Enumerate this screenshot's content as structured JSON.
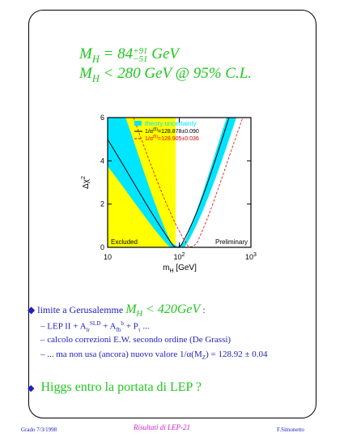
{
  "formula1": {
    "m": "M",
    "sub": "H",
    "eq": " = 84",
    "sup": "+91",
    "low": "−51",
    "unit": " GeV"
  },
  "formula2": {
    "m": "M",
    "sub": "H",
    "rest": " < 280 GeV @ 95% C.L."
  },
  "chart": {
    "ylabel": "Δχ",
    "ylabel_sup": "2",
    "xlabel": "m",
    "xlabel_sub": "H",
    "xlabel_rest": " [GeV]",
    "yticks": [
      0,
      2,
      4,
      6
    ],
    "xticks": [
      {
        "value": 10,
        "label": "10"
      },
      {
        "value": 100,
        "label": "10",
        "sup": "2"
      },
      {
        "value": 1000,
        "label": "10",
        "sup": "3"
      }
    ],
    "legend": {
      "band": "theory uncertainty",
      "black": "1/α",
      "black_sup": "(5)",
      "black_rest": "=128.878±0.090",
      "red": "1/α",
      "red_sup": "(5)",
      "red_rest": "=128.905±0.036"
    },
    "excluded": "Excluded",
    "preliminary": "Preliminary"
  },
  "bullet1": {
    "lead": "limite a Gerusalemme ",
    "m": "M",
    "sub": "H",
    "rest": " < 420GeV",
    "colon": " :"
  },
  "sublines": [
    [
      {
        "t": "– LEP II + A"
      },
      {
        "t": "lr",
        "sub": true
      },
      {
        "t": "SLD",
        "sup": true
      },
      {
        "t": " + A"
      },
      {
        "t": "fb",
        "sub": true
      },
      {
        "t": "b",
        "sup": true
      },
      {
        "t": " + P"
      },
      {
        "t": "τ",
        "sub": true
      },
      {
        "t": " ..."
      }
    ],
    [
      {
        "t": "– calcolo correzioni E.W. secondo ordine (De Grassi)"
      }
    ],
    [
      {
        "t": "– ... ma non usa (ancora) nuovo valore 1/α(M"
      },
      {
        "t": "Z",
        "sub": true
      },
      {
        "t": ") = 128.92 ± 0.04"
      }
    ]
  ],
  "bullet2": "Higgs entro la portata di LEP ?",
  "footer": {
    "left": "Grado 7/3/1998",
    "center": "Risultati di LEP-21",
    "right": "F.Simonetto"
  }
}
